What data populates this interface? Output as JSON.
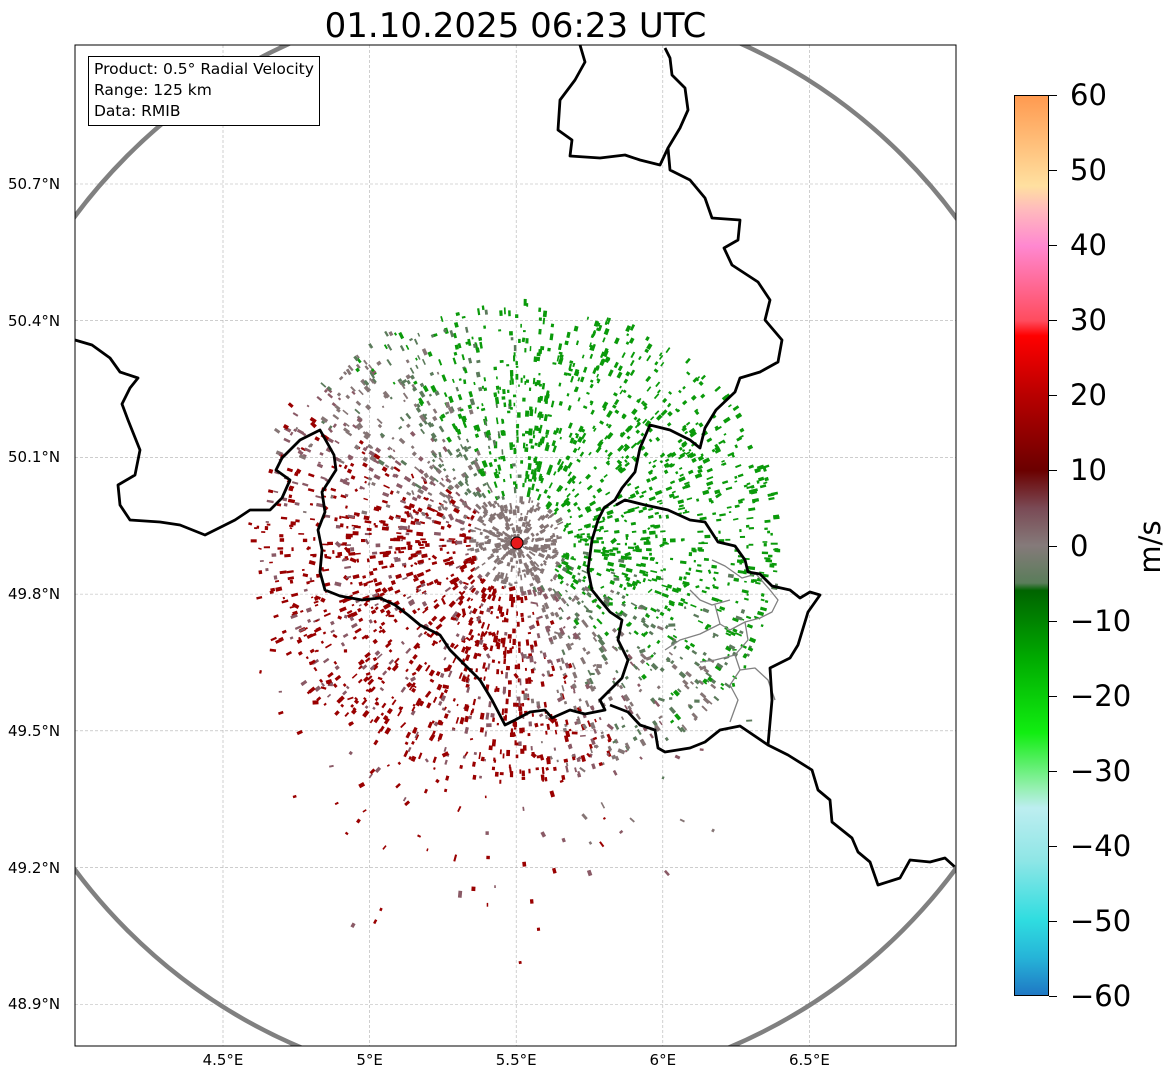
{
  "title": "01.10.2025 06:23 UTC",
  "info": {
    "product": "Product: 0.5° Radial Velocity",
    "range": "Range: 125 km",
    "data": "Data: RMIB"
  },
  "lat_ticks": [
    {
      "label": "50.7°N",
      "value": 50.7
    },
    {
      "label": "50.4°N",
      "value": 50.4
    },
    {
      "label": "50.1°N",
      "value": 50.1
    },
    {
      "label": "49.8°N",
      "value": 49.8
    },
    {
      "label": "49.5°N",
      "value": 49.5
    },
    {
      "label": "49.2°N",
      "value": 49.2
    },
    {
      "label": "48.9°N",
      "value": 48.9
    }
  ],
  "lon_ticks": [
    {
      "label": "4.5°E",
      "value": 4.5
    },
    {
      "label": "5°E",
      "value": 5.0
    },
    {
      "label": "5.5°E",
      "value": 5.5
    },
    {
      "label": "6°E",
      "value": 6.0
    },
    {
      "label": "6.5°E",
      "value": 6.5
    }
  ],
  "map_extent": {
    "lon_min": 4.0,
    "lon_max": 7.0,
    "lat_min": 48.8,
    "lat_max": 50.99
  },
  "radar": {
    "lon": 5.505,
    "lat": 49.915,
    "range_km": 125,
    "color": "#e8191b"
  },
  "colorbar": {
    "unit": "m/s",
    "vmin": -60,
    "vmax": 60,
    "ticks": [
      {
        "label": "60",
        "value": 60
      },
      {
        "label": "50",
        "value": 50
      },
      {
        "label": "40",
        "value": 40
      },
      {
        "label": "30",
        "value": 30
      },
      {
        "label": "20",
        "value": 20
      },
      {
        "label": "10",
        "value": 10
      },
      {
        "label": "0",
        "value": 0
      },
      {
        "label": "−10",
        "value": -10
      },
      {
        "label": "−20",
        "value": -20
      },
      {
        "label": "−30",
        "value": -30
      },
      {
        "label": "−40",
        "value": -40
      },
      {
        "label": "−50",
        "value": -50
      },
      {
        "label": "−60",
        "value": -60
      }
    ],
    "stops": [
      {
        "v": -60,
        "c": "#1f78c4"
      },
      {
        "v": -55,
        "c": "#26b4d8"
      },
      {
        "v": -50,
        "c": "#2fdde0"
      },
      {
        "v": -42,
        "c": "#8fe6e6"
      },
      {
        "v": -35,
        "c": "#bdeef0"
      },
      {
        "v": -32,
        "c": "#8ff0a8"
      },
      {
        "v": -25,
        "c": "#11ee11"
      },
      {
        "v": -15,
        "c": "#00aa00"
      },
      {
        "v": -6,
        "c": "#006400"
      },
      {
        "v": -5,
        "c": "#5a7d5a"
      },
      {
        "v": 0,
        "c": "#857a7a"
      },
      {
        "v": 5,
        "c": "#7a4a55"
      },
      {
        "v": 10,
        "c": "#6b0000"
      },
      {
        "v": 20,
        "c": "#b80000"
      },
      {
        "v": 28,
        "c": "#ff0000"
      },
      {
        "v": 30,
        "c": "#ff4c5e"
      },
      {
        "v": 40,
        "c": "#ff88d0"
      },
      {
        "v": 45,
        "c": "#ffbcbc"
      },
      {
        "v": 48,
        "c": "#ffe0a0"
      },
      {
        "v": 60,
        "c": "#ff9a50"
      }
    ]
  },
  "colors": {
    "echo_green": "#0a9a0a",
    "echo_dark_green": "#5b7a5b",
    "echo_grey": "#857575",
    "echo_mauve": "#8a5a66",
    "echo_dark_red": "#9a0000",
    "border": "#000000",
    "admin_border": "#808080",
    "range_ring": "#808080",
    "grid": "#b0b0b0"
  }
}
